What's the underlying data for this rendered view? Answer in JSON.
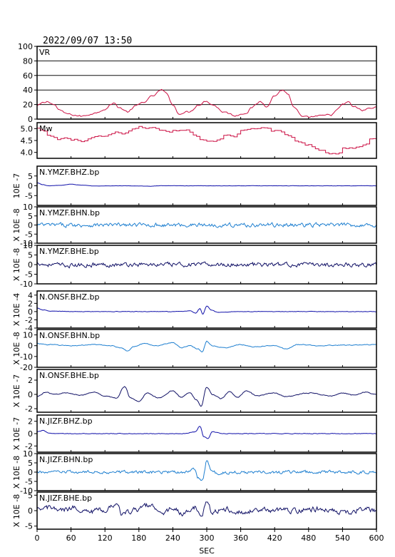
{
  "header": {
    "datetime": "2022/09/07 13:50"
  },
  "chart_data": [
    {
      "type": "line",
      "id": "vr",
      "title": "VR",
      "ylim": [
        0,
        100
      ],
      "yticks": [
        "0",
        "20",
        "40",
        "60",
        "80",
        "100"
      ],
      "grid": "y",
      "color": "#cc1144",
      "knots": [
        [
          0,
          18
        ],
        [
          10,
          22
        ],
        [
          20,
          24
        ],
        [
          30,
          20
        ],
        [
          40,
          12
        ],
        [
          50,
          8
        ],
        [
          60,
          6
        ],
        [
          80,
          4
        ],
        [
          100,
          8
        ],
        [
          120,
          14
        ],
        [
          135,
          22
        ],
        [
          145,
          16
        ],
        [
          160,
          10
        ],
        [
          175,
          18
        ],
        [
          190,
          24
        ],
        [
          205,
          32
        ],
        [
          220,
          40
        ],
        [
          230,
          34
        ],
        [
          240,
          20
        ],
        [
          250,
          8
        ],
        [
          270,
          10
        ],
        [
          285,
          20
        ],
        [
          300,
          25
        ],
        [
          310,
          20
        ],
        [
          330,
          10
        ],
        [
          350,
          5
        ],
        [
          370,
          9
        ],
        [
          380,
          16
        ],
        [
          395,
          24
        ],
        [
          405,
          18
        ],
        [
          420,
          32
        ],
        [
          433,
          40
        ],
        [
          443,
          35
        ],
        [
          455,
          15
        ],
        [
          470,
          2
        ],
        [
          500,
          4
        ],
        [
          520,
          6
        ],
        [
          530,
          12
        ],
        [
          540,
          20
        ],
        [
          550,
          23
        ],
        [
          560,
          17
        ],
        [
          575,
          12
        ],
        [
          590,
          15
        ],
        [
          600,
          16
        ]
      ],
      "noise": 1.2,
      "step": 2.5
    },
    {
      "type": "line",
      "id": "mw",
      "title": "Mw",
      "ylim": [
        3.75,
        5.25
      ],
      "yticks": [
        "4.0",
        "4.5",
        "5.0"
      ],
      "color": "#cc1144",
      "knots": [
        [
          0,
          5.0
        ],
        [
          10,
          4.85
        ],
        [
          20,
          4.7
        ],
        [
          35,
          4.55
        ],
        [
          50,
          4.6
        ],
        [
          60,
          4.5
        ],
        [
          80,
          4.5
        ],
        [
          100,
          4.6
        ],
        [
          120,
          4.65
        ],
        [
          140,
          4.8
        ],
        [
          150,
          4.7
        ],
        [
          165,
          4.95
        ],
        [
          180,
          5.05
        ],
        [
          200,
          5.05
        ],
        [
          210,
          4.95
        ],
        [
          230,
          4.85
        ],
        [
          250,
          4.95
        ],
        [
          265,
          4.95
        ],
        [
          280,
          4.7
        ],
        [
          295,
          4.5
        ],
        [
          320,
          4.5
        ],
        [
          335,
          4.75
        ],
        [
          345,
          4.65
        ],
        [
          360,
          4.9
        ],
        [
          380,
          4.95
        ],
        [
          400,
          5.05
        ],
        [
          420,
          4.9
        ],
        [
          440,
          4.75
        ],
        [
          460,
          4.45
        ],
        [
          480,
          4.3
        ],
        [
          500,
          4.1
        ],
        [
          520,
          3.95
        ],
        [
          530,
          3.9
        ],
        [
          540,
          4.2
        ],
        [
          560,
          4.2
        ],
        [
          580,
          4.3
        ],
        [
          590,
          4.55
        ],
        [
          600,
          4.5
        ]
      ],
      "noise": 0.05,
      "step": 6
    },
    {
      "type": "line",
      "id": "ymzf-bhz",
      "title": "N.YMZF.BHZ.bp",
      "ylim": [
        -10,
        10
      ],
      "yticks": [
        "-5",
        "0",
        "5"
      ],
      "ylabel": "10E -7",
      "color": "#1111aa",
      "knots": [
        [
          0,
          1.5
        ],
        [
          10,
          0.6
        ],
        [
          20,
          0
        ],
        [
          40,
          0.2
        ],
        [
          60,
          0.8
        ],
        [
          80,
          0.3
        ],
        [
          100,
          -0.1
        ],
        [
          150,
          0
        ],
        [
          200,
          -0.2
        ],
        [
          220,
          0
        ],
        [
          600,
          0
        ]
      ],
      "noise": 0.05,
      "step": 1.5
    },
    {
      "type": "line",
      "id": "ymzf-bhn",
      "title": "N.YMZF.BHN.bp",
      "ylim": [
        -10,
        10
      ],
      "yticks": [
        "-10",
        "-5",
        "0",
        "5",
        "10"
      ],
      "ylabel": "X 10E -8",
      "color": "#1e7fd0",
      "knots": [
        [
          0,
          0
        ],
        [
          600,
          0
        ]
      ],
      "noise": 0.9,
      "step": 1.5
    },
    {
      "type": "line",
      "id": "ymzf-bhe",
      "title": "N.YMZF.BHE.bp",
      "ylim": [
        -10,
        10
      ],
      "yticks": [
        "-10",
        "-5",
        "0",
        "5",
        "10"
      ],
      "ylabel": "X 10E -8",
      "color": "#111166",
      "knots": [
        [
          0,
          1
        ],
        [
          15,
          0
        ],
        [
          60,
          -0.5
        ],
        [
          100,
          0
        ],
        [
          600,
          0
        ]
      ],
      "noise": 0.9,
      "step": 1.5
    },
    {
      "type": "line",
      "id": "onsf-bhz",
      "title": "N.ONSF.BHZ.bp",
      "ylim": [
        -4,
        5
      ],
      "yticks": [
        "-4",
        "-2",
        "0",
        "2",
        "4"
      ],
      "ylabel": "X 10E -4",
      "color": "#1111aa",
      "knots": [
        [
          0,
          0.8
        ],
        [
          10,
          0.4
        ],
        [
          25,
          0.1
        ],
        [
          60,
          0
        ],
        [
          250,
          0
        ],
        [
          270,
          0.2
        ],
        [
          280,
          -0.4
        ],
        [
          288,
          0.7
        ],
        [
          293,
          -0.6
        ],
        [
          300,
          1.3
        ],
        [
          308,
          0.4
        ],
        [
          320,
          -0.2
        ],
        [
          350,
          0
        ],
        [
          600,
          0
        ]
      ],
      "noise": 0.05,
      "step": 1.5
    },
    {
      "type": "line",
      "id": "onsf-bhn",
      "title": "N.ONSF.BHN.bp",
      "ylim": [
        -20,
        15
      ],
      "yticks": [
        "-20",
        "-10",
        "0",
        "10"
      ],
      "ylabel": "X 10E -8",
      "color": "#1e7fd0",
      "knots": [
        [
          0,
          2
        ],
        [
          20,
          1
        ],
        [
          60,
          0
        ],
        [
          100,
          1
        ],
        [
          130,
          0
        ],
        [
          150,
          -2
        ],
        [
          160,
          -5
        ],
        [
          170,
          -1
        ],
        [
          190,
          2
        ],
        [
          210,
          0
        ],
        [
          240,
          3
        ],
        [
          255,
          -2
        ],
        [
          270,
          0
        ],
        [
          285,
          -3
        ],
        [
          292,
          -6
        ],
        [
          300,
          4
        ],
        [
          310,
          0
        ],
        [
          330,
          -2
        ],
        [
          360,
          1
        ],
        [
          380,
          -1
        ],
        [
          420,
          0
        ],
        [
          440,
          -3
        ],
        [
          460,
          1
        ],
        [
          500,
          0
        ],
        [
          520,
          0.5
        ],
        [
          600,
          1
        ]
      ],
      "noise": 0.3,
      "step": 1.5
    },
    {
      "type": "line",
      "id": "onsf-bhe",
      "title": "N.ONSF.BHE.bp",
      "ylim": [
        -2.5,
        3.5
      ],
      "yticks": [
        "-2",
        "0",
        "2"
      ],
      "ylabel": "X 10E -7",
      "color": "#111166",
      "knots": [
        [
          0,
          -0.3
        ],
        [
          15,
          0.3
        ],
        [
          30,
          0
        ],
        [
          50,
          0.2
        ],
        [
          80,
          -0.1
        ],
        [
          100,
          0.3
        ],
        [
          120,
          -0.2
        ],
        [
          140,
          -0.5
        ],
        [
          155,
          1.1
        ],
        [
          165,
          -0.5
        ],
        [
          180,
          -1.0
        ],
        [
          195,
          0.2
        ],
        [
          215,
          -0.5
        ],
        [
          240,
          0.5
        ],
        [
          255,
          -0.4
        ],
        [
          270,
          0.3
        ],
        [
          282,
          -0.8
        ],
        [
          290,
          -1.7
        ],
        [
          300,
          1.0
        ],
        [
          310,
          0
        ],
        [
          325,
          -0.6
        ],
        [
          340,
          0.4
        ],
        [
          355,
          -0.4
        ],
        [
          370,
          0.5
        ],
        [
          390,
          -0.2
        ],
        [
          420,
          0.2
        ],
        [
          440,
          -0.3
        ],
        [
          480,
          0.2
        ],
        [
          520,
          -0.2
        ],
        [
          540,
          0.2
        ],
        [
          560,
          -0.1
        ],
        [
          580,
          0.3
        ],
        [
          600,
          0
        ]
      ],
      "noise": 0.05,
      "step": 1.5
    },
    {
      "type": "line",
      "id": "jizf-bhz",
      "title": "N.JIZF.BHZ.bp",
      "ylim": [
        -3,
        3
      ],
      "yticks": [
        "-2",
        "0",
        "2"
      ],
      "ylabel": "X 10E -7",
      "color": "#1111aa",
      "knots": [
        [
          0,
          0.3
        ],
        [
          10,
          0.5
        ],
        [
          20,
          0.1
        ],
        [
          30,
          0
        ],
        [
          260,
          0
        ],
        [
          280,
          0.3
        ],
        [
          288,
          1.2
        ],
        [
          295,
          -0.5
        ],
        [
          302,
          -0.8
        ],
        [
          310,
          0.3
        ],
        [
          330,
          0
        ],
        [
          600,
          0
        ]
      ],
      "noise": 0.04,
      "step": 1.5
    },
    {
      "type": "line",
      "id": "jizf-bhn",
      "title": "N.JIZF.BHN.bp",
      "ylim": [
        -10,
        10
      ],
      "yticks": [
        "-10",
        "-5",
        "0",
        "5",
        "10"
      ],
      "ylabel": "X 10E -8",
      "color": "#1e7fd0",
      "knots": [
        [
          0,
          0
        ],
        [
          270,
          0
        ],
        [
          278,
          2
        ],
        [
          285,
          -3
        ],
        [
          293,
          -4
        ],
        [
          300,
          6
        ],
        [
          310,
          1
        ],
        [
          320,
          -1
        ],
        [
          340,
          0
        ],
        [
          600,
          0
        ]
      ],
      "noise": 0.7,
      "step": 1.5
    },
    {
      "type": "line",
      "id": "jizf-bhe",
      "title": "N.JIZF.BHE.bp",
      "ylim": [
        -6,
        6
      ],
      "yticks": [
        "-5",
        "0",
        "5"
      ],
      "ylabel": "X 10E -8",
      "color": "#111166",
      "knots": [
        [
          0,
          0
        ],
        [
          20,
          1
        ],
        [
          40,
          0
        ],
        [
          70,
          1
        ],
        [
          90,
          -0.5
        ],
        [
          120,
          0.3
        ],
        [
          140,
          2
        ],
        [
          150,
          -1
        ],
        [
          180,
          0.5
        ],
        [
          200,
          2
        ],
        [
          215,
          -1
        ],
        [
          240,
          0.5
        ],
        [
          260,
          -1
        ],
        [
          280,
          1
        ],
        [
          290,
          -2.5
        ],
        [
          300,
          2
        ],
        [
          310,
          -0.5
        ],
        [
          330,
          0.5
        ],
        [
          360,
          -0.5
        ],
        [
          400,
          0.3
        ],
        [
          450,
          0
        ],
        [
          500,
          0.5
        ],
        [
          540,
          -0.5
        ],
        [
          580,
          0.5
        ],
        [
          600,
          0
        ]
      ],
      "noise": 0.7,
      "step": 1.5
    }
  ],
  "x_axis": {
    "label": "SEC",
    "xlim": [
      0,
      600
    ],
    "ticks": [
      "0",
      "60",
      "120",
      "180",
      "240",
      "300",
      "360",
      "420",
      "480",
      "540",
      "600"
    ]
  }
}
